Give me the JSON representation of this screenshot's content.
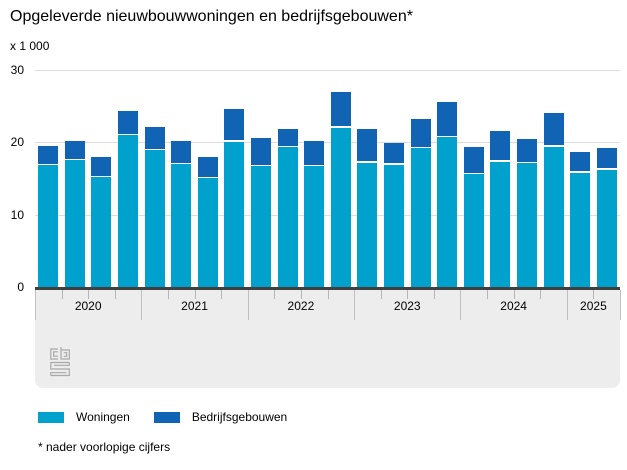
{
  "page": {
    "title": "Opgeleverde nieuwbouwwoningen en bedrijfsgebouwen*",
    "unit_label": "x 1 000",
    "footnote": "* nader voorlopige cijfers"
  },
  "legend": {
    "items": [
      {
        "label": "Woningen",
        "color": "#00a1cd"
      },
      {
        "label": "Bedrijfsgebouwen",
        "color": "#1164b4"
      }
    ]
  },
  "branding": {
    "logo_icon": "cbs-logo",
    "logo_color": "#a8a8a8"
  },
  "colors": {
    "woningen": "#00a1cd",
    "bedrijfsgebouwen": "#1164b4",
    "gridline": "#dcdcdc",
    "baseline": "#404040",
    "axis_panel": "#ededed"
  },
  "chart_data": {
    "type": "bar",
    "stacked": true,
    "title": "Opgeleverde nieuwbouwwoningen en bedrijfsgebouwen*",
    "unit": "x 1 000",
    "categories": [
      "2020 Q1",
      "2020 Q2",
      "2020 Q3",
      "2020 Q4",
      "2021 Q1",
      "2021 Q2",
      "2021 Q3",
      "2021 Q4",
      "2022 Q1",
      "2022 Q2",
      "2022 Q3",
      "2022 Q4",
      "2023 Q1",
      "2023 Q2",
      "2023 Q3",
      "2023 Q4",
      "2024 Q1",
      "2024 Q2",
      "2024 Q3",
      "2024 Q4",
      "2025 Q1",
      "2025 Q2"
    ],
    "x_year_labels": [
      "2020",
      "2021",
      "2022",
      "2023",
      "2024",
      "2025"
    ],
    "quarters_per_year": [
      4,
      4,
      4,
      4,
      4,
      2
    ],
    "series": [
      {
        "name": "Woningen",
        "color": "#00a1cd",
        "values": [
          16.8,
          17.5,
          15.2,
          21.0,
          18.9,
          17.0,
          15.0,
          20.1,
          16.7,
          19.3,
          16.7,
          22.0,
          17.2,
          16.9,
          19.2,
          20.7,
          15.6,
          17.3,
          17.1,
          19.4,
          15.8,
          16.2
        ]
      },
      {
        "name": "Bedrijfsgebouwen",
        "color": "#1164b4",
        "values": [
          2.7,
          2.7,
          2.8,
          3.4,
          3.2,
          3.2,
          3.0,
          4.5,
          3.9,
          2.6,
          3.5,
          4.9,
          4.7,
          3.0,
          4.0,
          4.9,
          3.7,
          4.3,
          3.3,
          4.6,
          2.9,
          3.0
        ]
      }
    ],
    "ylim": [
      0,
      30
    ],
    "yticks": [
      0,
      10,
      20,
      30
    ],
    "grid": true,
    "legend_position": "bottom"
  }
}
